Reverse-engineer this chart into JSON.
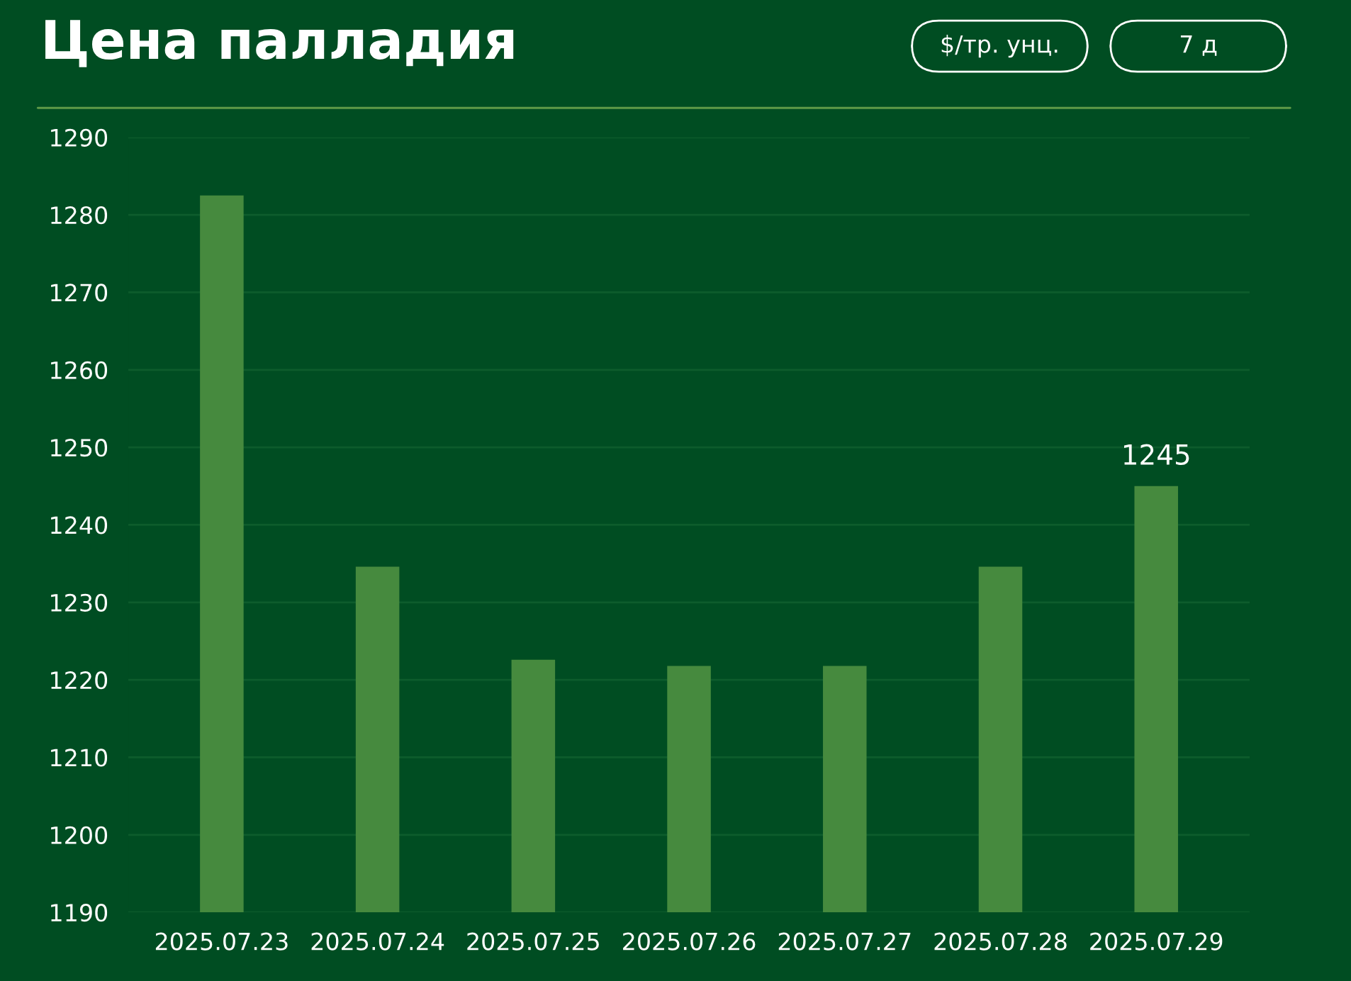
{
  "chart_data": {
    "type": "bar",
    "title": "Цена палладия",
    "annotations": [
      "$/тр. унц.",
      "7 д"
    ],
    "categories": [
      "2025.07.23",
      "2025.07.24",
      "2025.07.25",
      "2025.07.26",
      "2025.07.27",
      "2025.07.28",
      "2025.07.29"
    ],
    "values": [
      1282.5,
      1234.6,
      1222.6,
      1221.8,
      1221.8,
      1234.6,
      1245
    ],
    "value_labels": [
      null,
      null,
      null,
      null,
      null,
      null,
      "1245"
    ],
    "color": "#468a3e",
    "ylim": [
      1190,
      1290
    ],
    "yticks": [
      1190,
      1200,
      1210,
      1220,
      1230,
      1240,
      1250,
      1260,
      1270,
      1280,
      1290
    ],
    "grid": "y"
  }
}
